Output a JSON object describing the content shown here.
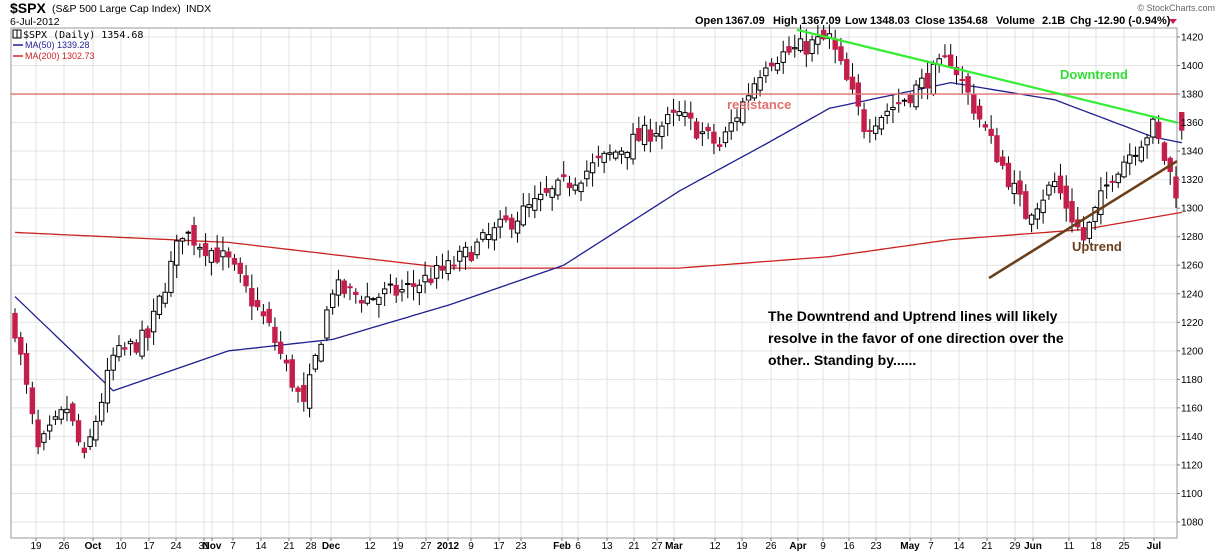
{
  "header": {
    "symbol": "$SPX",
    "name": "(S&P 500 Large Cap Index)",
    "exchange": "INDX",
    "date": "6-Jul-2012",
    "watermark": "© StockCharts.com",
    "quote": {
      "open_label": "Open",
      "open": "1367.09",
      "high_label": "High",
      "high": "1367.09",
      "low_label": "Low",
      "low": "1348.03",
      "close_label": "Close",
      "close": "1354.68",
      "volume_label": "Volume",
      "volume": "2.1B",
      "chg_label": "Chg",
      "chg": "-12.90 (-0.94%)"
    }
  },
  "legend": {
    "items": [
      {
        "label": "$SPX (Daily) 1354.68",
        "color": "#000000"
      },
      {
        "label": "MA(50) 1339.28",
        "color": "#1f1f8f"
      },
      {
        "label": "MA(200) 1302.73",
        "color": "#cc2222"
      }
    ]
  },
  "annotations": {
    "resistance": "resistance",
    "downtrend": "Downtrend",
    "uptrend": "Uptrend",
    "note_lines": [
      "The  Downtrend and Uptrend lines will likely",
      "resolve in the favor of one direction over the",
      "other.. Standing by......"
    ]
  },
  "chart_data": {
    "type": "candlestick",
    "x_tick_labels": [
      "19",
      "26",
      "Oct",
      "10",
      "17",
      "24",
      "31",
      "Nov",
      "7",
      "14",
      "21",
      "28",
      "Dec",
      "12",
      "19",
      "27",
      "2012",
      "9",
      "17",
      "23",
      "Feb",
      "6",
      "13",
      "21",
      "27",
      "Mar",
      "12",
      "19",
      "26",
      "Apr",
      "9",
      "16",
      "23",
      "May",
      "7",
      "14",
      "21",
      "29",
      "Jun",
      "11",
      "18",
      "25",
      "Jul"
    ],
    "y_ticks": [
      1080,
      1100,
      1120,
      1140,
      1160,
      1180,
      1200,
      1220,
      1240,
      1260,
      1280,
      1300,
      1320,
      1340,
      1360,
      1380,
      1400,
      1420
    ],
    "ylim": [
      1070,
      1428
    ],
    "candle_count": 203,
    "last_candle": {
      "open": 1367.09,
      "high": 1367.09,
      "low": 1348.03,
      "close": 1354.68
    },
    "close_series": [
      {
        "label": "Sep-16-2011",
        "close": 1216
      },
      {
        "label": "Sep-22-2011",
        "close": 1130
      },
      {
        "label": "Sep-29-2011",
        "close": 1160
      },
      {
        "label": "Oct-4-2011",
        "close": 1123
      },
      {
        "label": "Oct-11-2011",
        "close": 1195
      },
      {
        "label": "Oct-19-2011",
        "close": 1210
      },
      {
        "label": "Oct-27-2011",
        "close": 1284
      },
      {
        "label": "Nov-8-2011",
        "close": 1262
      },
      {
        "label": "Nov-17-2011",
        "close": 1216
      },
      {
        "label": "Nov-25-2011",
        "close": 1160
      },
      {
        "label": "Dec-2-2011",
        "close": 1244
      },
      {
        "label": "Dec-12-2011",
        "close": 1237
      },
      {
        "label": "Dec-20-2011",
        "close": 1242
      },
      {
        "label": "Dec-30-2011",
        "close": 1258
      },
      {
        "label": "Jan-13-2012",
        "close": 1289
      },
      {
        "label": "Jan-27-2012",
        "close": 1316
      },
      {
        "label": "Feb-10-2012",
        "close": 1342
      },
      {
        "label": "Feb-24-2012",
        "close": 1365
      },
      {
        "label": "Mar-6-2012",
        "close": 1343
      },
      {
        "label": "Mar-16-2012",
        "close": 1404
      },
      {
        "label": "Apr-2-2012",
        "close": 1419
      },
      {
        "label": "Apr-10-2012",
        "close": 1358
      },
      {
        "label": "Apr-19-2012",
        "close": 1377
      },
      {
        "label": "May-1-2012",
        "close": 1405
      },
      {
        "label": "May-8-2012",
        "close": 1363
      },
      {
        "label": "May-18-2012",
        "close": 1296
      },
      {
        "label": "May-25-2012",
        "close": 1318
      },
      {
        "label": "Jun-1-2012",
        "close": 1278
      },
      {
        "label": "Jun-8-2012",
        "close": 1325
      },
      {
        "label": "Jun-19-2012",
        "close": 1357
      },
      {
        "label": "Jun-25-2012",
        "close": 1313
      },
      {
        "label": "Jun-29-2012",
        "close": 1362
      },
      {
        "label": "Jul-3-2012",
        "close": 1374
      },
      {
        "label": "Jul-6-2012",
        "close": 1355
      }
    ],
    "ma50": [
      {
        "label": "Sep-16-2011",
        "value": 1238
      },
      {
        "label": "Oct-11-2011",
        "value": 1172
      },
      {
        "label": "Nov-8-2011",
        "value": 1200
      },
      {
        "label": "Dec-2-2011",
        "value": 1208
      },
      {
        "label": "Dec-30-2011",
        "value": 1232
      },
      {
        "label": "Jan-27-2012",
        "value": 1260
      },
      {
        "label": "Feb-24-2012",
        "value": 1312
      },
      {
        "label": "Mar-16-2012",
        "value": 1345
      },
      {
        "label": "Apr-2-2012",
        "value": 1370
      },
      {
        "label": "May-1-2012",
        "value": 1388
      },
      {
        "label": "May-25-2012",
        "value": 1376
      },
      {
        "label": "Jun-19-2012",
        "value": 1350
      },
      {
        "label": "Jul-6-2012",
        "value": 1339.28
      }
    ],
    "ma200": [
      {
        "label": "Sep-16-2011",
        "value": 1283
      },
      {
        "label": "Nov-8-2011",
        "value": 1276
      },
      {
        "label": "Dec-30-2011",
        "value": 1258
      },
      {
        "label": "Feb-24-2012",
        "value": 1258
      },
      {
        "label": "Apr-2-2012",
        "value": 1266
      },
      {
        "label": "May-1-2012",
        "value": 1278
      },
      {
        "label": "Jun-1-2012",
        "value": 1285
      },
      {
        "label": "Jul-6-2012",
        "value": 1302.73
      }
    ],
    "resistance_level": 1380,
    "downtrend_line": [
      {
        "label": "Apr-2-2012",
        "value": 1425
      },
      {
        "label": "Jul-6-2012",
        "value": 1360
      }
    ],
    "uptrend_line": [
      {
        "label": "May-29-2012",
        "value": 1251
      },
      {
        "label": "Jul-6-2012",
        "value": 1333
      }
    ],
    "colors": {
      "up_candle": "#000000",
      "down_candle": "#c41e4a",
      "ma50": "#1f1f8f",
      "ma200": "#cc2222",
      "resistance": "#e07070",
      "downtrend": "#33ee33",
      "uptrend": "#6b3e1a",
      "grid": "#e3e3e3"
    },
    "grid": true,
    "legend_position": "top-left"
  }
}
